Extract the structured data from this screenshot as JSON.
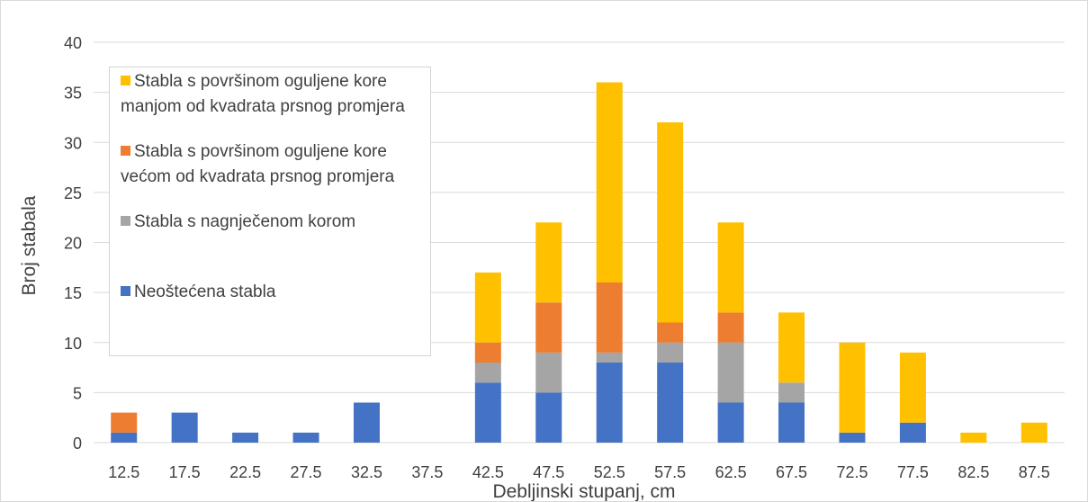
{
  "chart_data": {
    "type": "bar",
    "stacked": true,
    "title": "",
    "xlabel": "Debljinski stupanj, cm",
    "ylabel": "Broj stabala",
    "ylim": [
      0,
      40
    ],
    "yticks": [
      "0",
      "5",
      "10",
      "15",
      "20",
      "25",
      "30",
      "35",
      "40"
    ],
    "grid": true,
    "legend_position": "top-left",
    "categories": [
      "12.5",
      "17.5",
      "22.5",
      "27.5",
      "32.5",
      "37.5",
      "42.5",
      "47.5",
      "52.5",
      "57.5",
      "62.5",
      "67.5",
      "72.5",
      "77.5",
      "82.5",
      "87.5"
    ],
    "series": [
      {
        "name": "Neoštećena stabla",
        "color": "#4472c4",
        "values": [
          1,
          3,
          1,
          1,
          4,
          0,
          6,
          5,
          8,
          8,
          4,
          4,
          1,
          2,
          0,
          0
        ]
      },
      {
        "name": "Stabla s nagnječenom korom",
        "color": "#a5a5a5",
        "values": [
          0,
          0,
          0,
          0,
          0,
          0,
          2,
          4,
          1,
          2,
          6,
          2,
          0,
          0,
          0,
          0
        ]
      },
      {
        "name": "Stabla s površinom oguljene kore većom od kvadrata prsnog promjera",
        "color": "#ed7d31",
        "values": [
          2,
          0,
          0,
          0,
          0,
          0,
          2,
          5,
          7,
          2,
          3,
          0,
          0,
          0,
          0,
          0
        ]
      },
      {
        "name": "Stabla s površinom oguljene kore manjom od kvadrata prsnog promjera",
        "color": "#ffc000",
        "values": [
          0,
          0,
          0,
          0,
          0,
          0,
          7,
          8,
          20,
          20,
          9,
          7,
          9,
          7,
          1,
          2
        ]
      }
    ]
  }
}
